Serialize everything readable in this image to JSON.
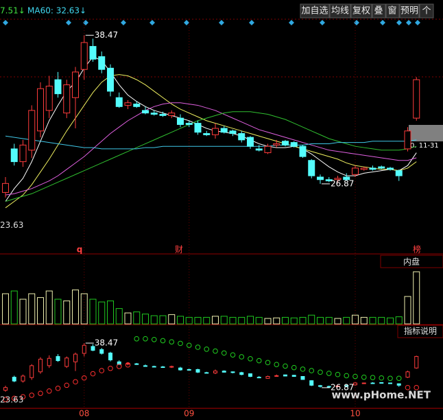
{
  "chart_data": {
    "type": "candlestick",
    "header": {
      "last": "7.51↓",
      "ma60": "MA60: 32.63↓"
    },
    "toolbar": [
      "加自选",
      "均线",
      "复权",
      "叠",
      "窗",
      "预明",
      "个"
    ],
    "ylim": [
      22.74,
      39.72
    ],
    "up_color": "#ff3c3c",
    "down_color": "#54fcfc",
    "ohlc": [
      [
        26.2,
        27.4,
        25.8,
        26.9
      ],
      [
        29.6,
        30.0,
        28.3,
        28.6
      ],
      [
        28.6,
        30.3,
        28.2,
        29.9
      ],
      [
        29.5,
        33.0,
        28.9,
        32.6
      ],
      [
        31.0,
        34.8,
        30.5,
        34.3
      ],
      [
        32.6,
        35.3,
        32.0,
        34.5
      ],
      [
        35.0,
        35.6,
        33.6,
        33.9
      ],
      [
        32.4,
        35.0,
        32.0,
        34.6
      ],
      [
        33.6,
        36.0,
        31.2,
        35.6
      ],
      [
        35.8,
        38.47,
        35.0,
        37.9
      ],
      [
        37.6,
        38.2,
        36.4,
        36.6
      ],
      [
        36.8,
        37.2,
        35.5,
        35.8
      ],
      [
        35.9,
        36.2,
        33.7,
        34.1
      ],
      [
        33.6,
        34.0,
        32.8,
        32.9
      ],
      [
        33.0,
        33.4,
        32.7,
        33.2
      ],
      [
        33.1,
        33.3,
        32.8,
        32.9
      ],
      [
        32.6,
        32.9,
        32.3,
        32.4
      ],
      [
        32.4,
        32.6,
        32.2,
        32.3
      ],
      [
        32.3,
        32.5,
        32.1,
        32.2
      ],
      [
        32.2,
        32.6,
        32.0,
        32.4
      ],
      [
        32.0,
        32.3,
        31.3,
        31.5
      ],
      [
        31.6,
        31.8,
        31.3,
        31.5
      ],
      [
        31.6,
        31.8,
        30.7,
        30.9
      ],
      [
        30.8,
        31.0,
        30.6,
        30.7
      ],
      [
        30.7,
        31.6,
        30.4,
        31.2
      ],
      [
        31.2,
        31.4,
        30.8,
        30.9
      ],
      [
        31.0,
        31.1,
        30.6,
        30.8
      ],
      [
        30.8,
        31.0,
        30.1,
        30.3
      ],
      [
        30.5,
        30.6,
        29.6,
        29.8
      ],
      [
        29.6,
        29.9,
        29.4,
        29.5
      ],
      [
        29.3,
        30.0,
        29.2,
        29.8
      ],
      [
        29.9,
        30.3,
        29.7,
        30.0
      ],
      [
        30.2,
        30.3,
        29.8,
        29.9
      ],
      [
        30.1,
        30.2,
        29.7,
        29.8
      ],
      [
        29.8,
        29.9,
        28.9,
        29.0
      ],
      [
        28.7,
        28.8,
        27.3,
        27.5
      ],
      [
        27.4,
        27.6,
        26.87,
        27.2
      ],
      [
        27.2,
        27.4,
        27.0,
        27.1
      ],
      [
        27.2,
        27.5,
        27.0,
        27.3
      ],
      [
        27.4,
        27.7,
        27.1,
        27.2
      ],
      [
        27.6,
        28.3,
        27.4,
        28.1
      ],
      [
        28.0,
        28.2,
        27.9,
        28.1
      ],
      [
        28.1,
        28.3,
        27.9,
        28.0
      ],
      [
        28.2,
        28.3,
        28.0,
        28.1
      ],
      [
        28.1,
        28.2,
        27.9,
        28.0
      ],
      [
        27.9,
        28.0,
        27.1,
        27.5
      ],
      [
        29.6,
        31.3,
        29.4,
        31.0
      ],
      [
        32.0,
        35.2,
        31.8,
        35.0
      ]
    ],
    "series": [
      {
        "color": "#ffffff",
        "values": [
          25.5,
          26.5,
          27.3,
          28.6,
          30.2,
          31.8,
          33.0,
          34.1,
          34.8,
          35.9,
          36.8,
          36.5,
          35.6,
          34.6,
          33.8,
          33.3,
          32.9,
          32.6,
          32.4,
          32.2,
          32.0,
          31.8,
          31.5,
          31.2,
          31.0,
          30.9,
          30.8,
          30.6,
          30.3,
          30.0,
          29.8,
          29.7,
          29.7,
          29.8,
          29.6,
          29.2,
          28.7,
          28.2,
          27.8,
          27.5,
          27.5,
          27.7,
          27.8,
          27.9,
          28.0,
          27.9,
          28.3,
          29.3
        ]
      },
      {
        "color": "#f0f060",
        "values": [
          25.0,
          25.5,
          26.0,
          26.8,
          27.8,
          28.8,
          29.9,
          31.0,
          32.0,
          33.0,
          34.0,
          34.8,
          35.3,
          35.4,
          35.3,
          35.0,
          34.6,
          34.1,
          33.6,
          33.1,
          32.7,
          32.4,
          32.1,
          31.8,
          31.6,
          31.4,
          31.2,
          31.0,
          30.8,
          30.6,
          30.4,
          30.2,
          30.0,
          29.8,
          29.6,
          29.4,
          29.2,
          29.0,
          28.8,
          28.5,
          28.3,
          28.2,
          28.1,
          28.0,
          28.0,
          27.9,
          28.1,
          28.6
        ]
      },
      {
        "color": "#e060e0",
        "values": [
          26.0,
          26.1,
          26.3,
          26.5,
          26.8,
          27.1,
          27.5,
          28.0,
          28.5,
          29.0,
          29.6,
          30.2,
          30.8,
          31.3,
          31.8,
          32.2,
          32.6,
          32.9,
          33.1,
          33.2,
          33.2,
          33.1,
          33.0,
          32.8,
          32.6,
          32.3,
          32.0,
          31.7,
          31.4,
          31.1,
          30.9,
          30.7,
          30.5,
          30.3,
          30.1,
          29.9,
          29.7,
          29.5,
          29.4,
          29.3,
          29.2,
          29.1,
          29.0,
          28.9,
          28.8,
          28.7,
          28.7,
          28.9
        ]
      },
      {
        "color": "#30c030",
        "values": [
          25.5,
          25.7,
          25.9,
          26.1,
          26.4,
          26.7,
          27.0,
          27.3,
          27.6,
          27.9,
          28.2,
          28.5,
          28.8,
          29.1,
          29.4,
          29.7,
          30.0,
          30.3,
          30.6,
          30.9,
          31.2,
          31.5,
          31.8,
          32.0,
          32.2,
          32.4,
          32.5,
          32.5,
          32.5,
          32.4,
          32.3,
          32.1,
          31.9,
          31.6,
          31.3,
          31.0,
          30.7,
          30.4,
          30.2,
          30.0,
          29.8,
          29.7,
          29.6,
          29.5,
          29.5,
          29.5,
          29.6,
          29.8
        ]
      },
      {
        "color": "#40c8e8",
        "values": [
          30.6,
          30.5,
          30.4,
          30.3,
          30.2,
          30.1,
          30.0,
          29.9,
          29.8,
          29.7,
          29.7,
          29.6,
          29.6,
          29.6,
          29.6,
          29.6,
          29.7,
          29.7,
          29.8,
          29.8,
          29.8,
          29.8,
          29.8,
          29.8,
          29.8,
          29.8,
          29.8,
          29.8,
          29.8,
          29.8,
          29.8,
          29.9,
          29.9,
          29.9,
          29.9,
          30.0,
          30.0,
          30.0,
          30.1,
          30.1,
          30.1,
          30.1,
          30.2,
          30.2,
          30.2,
          30.2,
          30.2,
          30.3
        ]
      }
    ],
    "xticks": [
      {
        "value": 9,
        "label": "08"
      },
      {
        "value": 21,
        "label": "09"
      },
      {
        "value": 40,
        "label": "10"
      }
    ],
    "markers": [
      "q",
      "财",
      "榜"
    ],
    "axis_min": 23.63,
    "cursor_label": "0. 11-31",
    "volume": {
      "ylim": [
        0,
        100
      ],
      "up_color": "#f0f0b0",
      "down_color": "#20c820",
      "values": [
        55,
        60,
        45,
        55,
        48,
        60,
        45,
        42,
        62,
        55,
        45,
        40,
        42,
        28,
        20,
        22,
        18,
        15,
        15,
        17,
        14,
        12,
        12,
        12,
        14,
        14,
        12,
        12,
        14,
        12,
        10,
        11,
        12,
        11,
        12,
        16,
        12,
        12,
        10,
        12,
        16,
        12,
        12,
        12,
        11,
        13,
        50,
        95
      ]
    },
    "panel_labels": [
      "内盘",
      "指标说明"
    ],
    "sar": {
      "ylim": [
        20.6,
        42.04
      ],
      "up_color": "#ff3030",
      "down_color": "#20d020",
      "values": [
        23.8,
        24.1,
        24.5,
        24.9,
        25.4,
        26.0,
        26.7,
        27.5,
        28.4,
        29.4,
        30.5,
        31.3,
        31.9,
        32.4,
        32.8,
        39.6,
        39.6,
        39.4,
        39.1,
        38.8,
        38.4,
        37.9,
        37.4,
        36.9,
        36.4,
        35.9,
        35.4,
        34.9,
        34.4,
        33.9,
        33.4,
        32.9,
        32.5,
        32.1,
        31.7,
        31.3,
        30.9,
        30.6,
        30.3,
        30.0,
        29.8,
        29.6,
        29.5,
        29.4,
        29.3,
        29.3,
        26.9,
        26.9
      ]
    },
    "watermark": "www.pHome.NET"
  }
}
